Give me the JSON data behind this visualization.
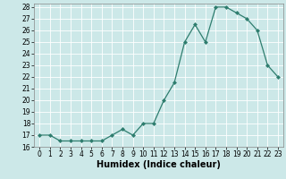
{
  "x": [
    0,
    1,
    2,
    3,
    4,
    5,
    6,
    7,
    8,
    9,
    10,
    11,
    12,
    13,
    14,
    15,
    16,
    17,
    18,
    19,
    20,
    21,
    22,
    23
  ],
  "y": [
    17.0,
    17.0,
    16.5,
    16.5,
    16.5,
    16.5,
    16.5,
    17.0,
    17.5,
    17.0,
    18.0,
    18.0,
    20.0,
    21.5,
    25.0,
    26.5,
    25.0,
    28.0,
    28.0,
    27.5,
    27.0,
    26.0,
    23.0,
    22.0
  ],
  "xlabel": "Humidex (Indice chaleur)",
  "ylim": [
    16,
    28
  ],
  "xlim": [
    -0.5,
    23.5
  ],
  "yticks": [
    16,
    17,
    18,
    19,
    20,
    21,
    22,
    23,
    24,
    25,
    26,
    27,
    28
  ],
  "xticks": [
    0,
    1,
    2,
    3,
    4,
    5,
    6,
    7,
    8,
    9,
    10,
    11,
    12,
    13,
    14,
    15,
    16,
    17,
    18,
    19,
    20,
    21,
    22,
    23
  ],
  "line_color": "#2e7d6e",
  "marker_color": "#2e7d6e",
  "bg_color": "#cce8e8",
  "grid_color": "#ffffff",
  "font_color": "#000000",
  "tick_fontsize": 5.5,
  "xlabel_fontsize": 7.0
}
